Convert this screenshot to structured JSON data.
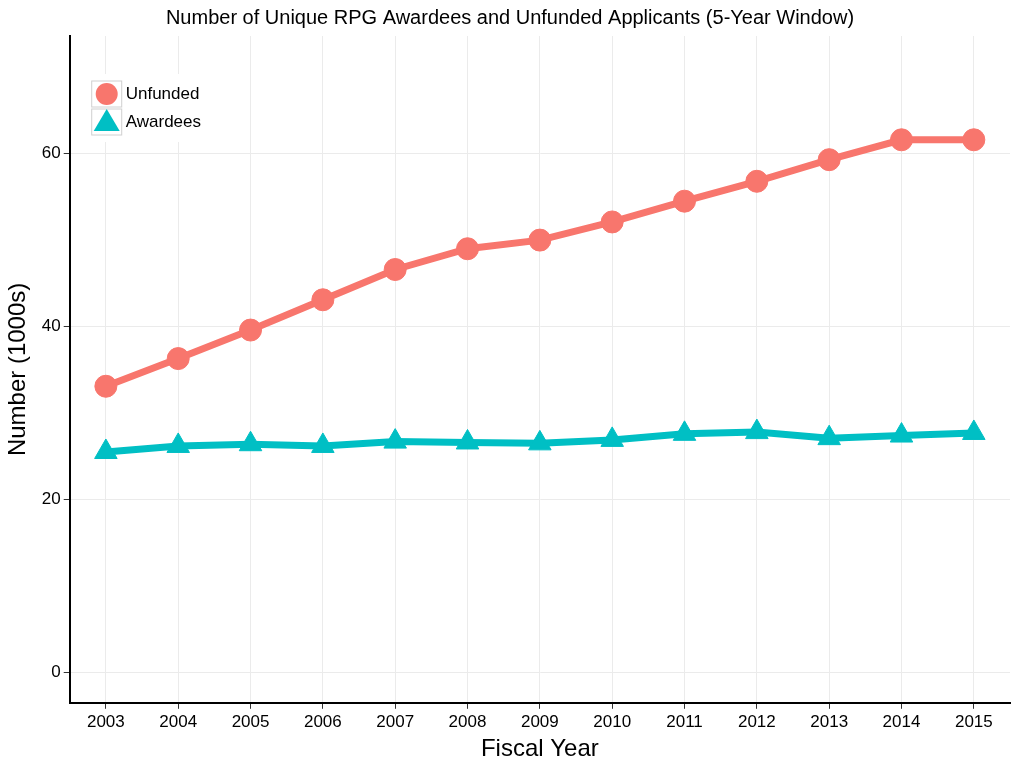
{
  "chart_data": {
    "type": "line",
    "title": "Number of Unique RPG Awardees and Unfunded Applicants (5-Year Window)",
    "x_label": "Fiscal Year",
    "y_label": "Number (1000s)",
    "categories": [
      "2003",
      "2004",
      "2005",
      "2006",
      "2007",
      "2008",
      "2009",
      "2010",
      "2011",
      "2012",
      "2013",
      "2014",
      "2015"
    ],
    "series": [
      {
        "name": "Unfunded",
        "color": "#f8766d",
        "marker": "circle",
        "values": [
          33.1,
          36.3,
          39.6,
          43.1,
          46.6,
          49.0,
          50.0,
          52.1,
          54.5,
          56.8,
          59.3,
          61.6,
          61.6
        ]
      },
      {
        "name": "Awardees",
        "color": "#00bfc4",
        "marker": "triangle",
        "values": [
          25.5,
          26.2,
          26.4,
          26.2,
          26.7,
          26.6,
          26.5,
          26.9,
          27.6,
          27.8,
          27.1,
          27.4,
          27.7
        ]
      }
    ],
    "ylim": [
      -3.5,
      73.6
    ],
    "yticks": [
      0,
      20,
      40,
      60
    ],
    "grid": true,
    "legend": "top-left"
  }
}
